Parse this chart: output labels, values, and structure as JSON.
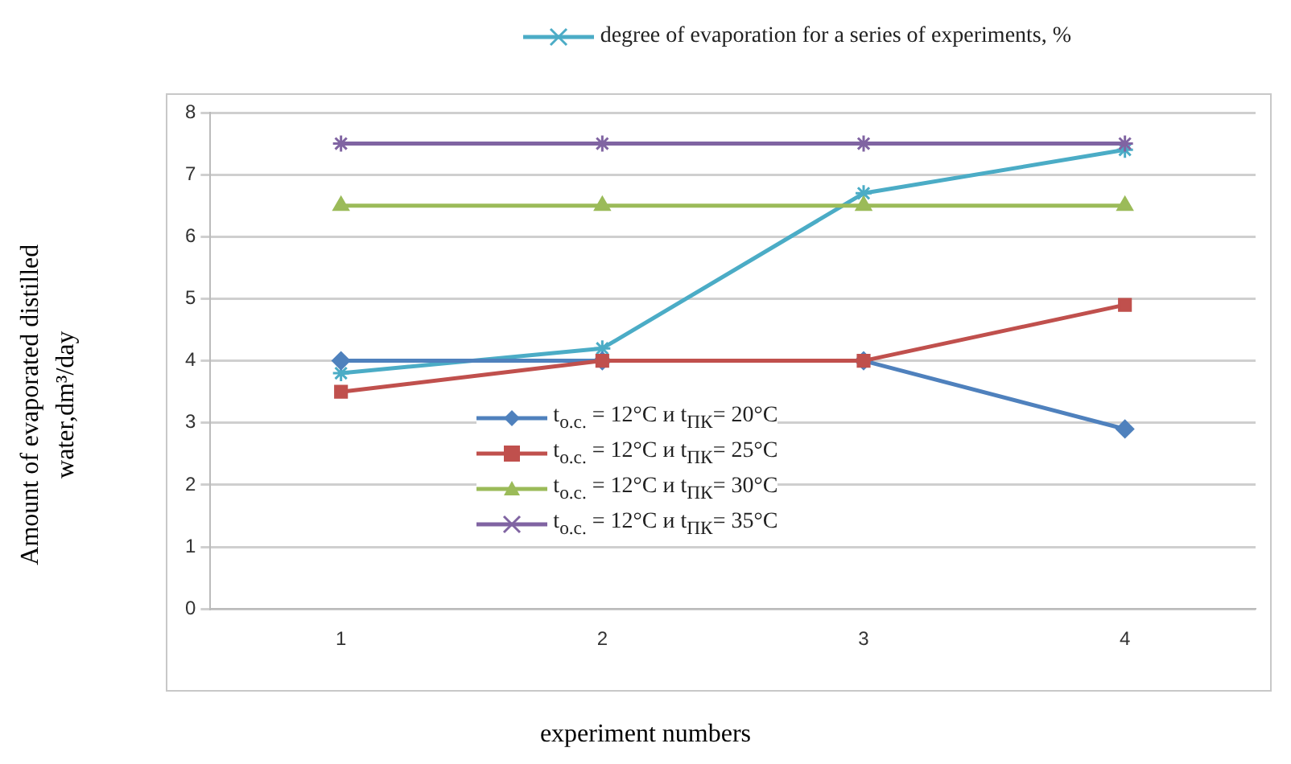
{
  "chart_data": {
    "type": "line",
    "xlabel": "experiment numbers",
    "ylabel": "Amount of evaporated distilled water,dm³/day",
    "categories": [
      "1",
      "2",
      "3",
      "4"
    ],
    "series": [
      {
        "name": "degree of evaporation for a series of experiments, %",
        "color": "#4bacc6",
        "marker": "cross",
        "values": [
          3.8,
          4.2,
          6.7,
          7.4
        ]
      },
      {
        "name": "t$_{o.c.}$ = 12°C и t$_{ПК}$= 20°C",
        "color": "#4f81bd",
        "marker": "diamond",
        "values": [
          4,
          4,
          4,
          2.9
        ]
      },
      {
        "name": "t$_{o.c.}$ = 12°C и t$_{ПК}$= 25°C",
        "color": "#c0504d",
        "marker": "square",
        "values": [
          3.5,
          4,
          4,
          4.9
        ]
      },
      {
        "name": "t$_{o.c.}$ = 12°C и t$_{ПК}$= 30°C",
        "color": "#9bbb59",
        "marker": "triangle",
        "values": [
          6.5,
          6.5,
          6.5,
          6.5
        ]
      },
      {
        "name": "t$_{o.c.}$ = 12°C и t$_{ПК}$= 35°C",
        "color": "#8064a2",
        "marker": "cross",
        "values": [
          7.5,
          7.5,
          7.5,
          7.5
        ]
      }
    ],
    "ylim": [
      0,
      8
    ],
    "yticks": [
      0,
      1,
      2,
      3,
      4,
      5,
      6,
      7,
      8
    ],
    "grid": "y",
    "legend": "top"
  }
}
